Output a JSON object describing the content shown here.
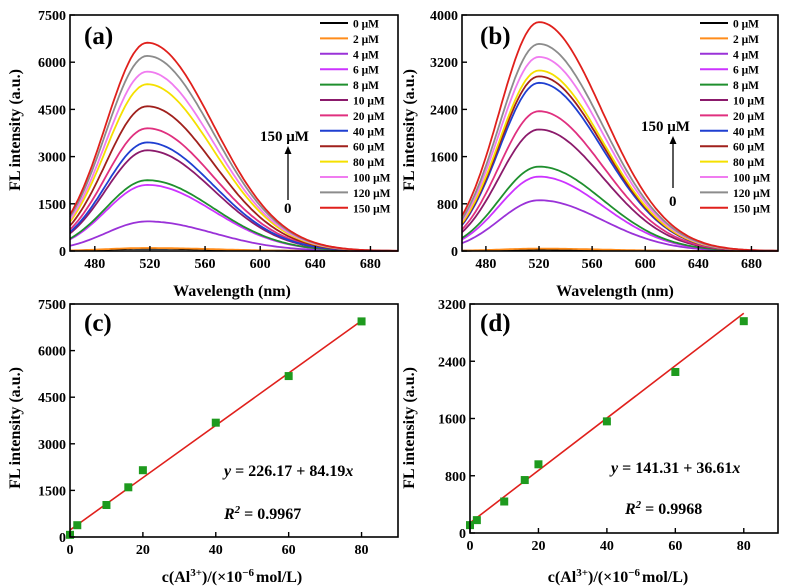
{
  "chart_data": [
    {
      "panel": "(a)",
      "type": "line",
      "xlabel": "Wavelength (nm)",
      "ylabel": "FL intensity (a.u.)",
      "xlim": [
        462,
        700
      ],
      "ylim": [
        0,
        7500
      ],
      "xticks": [
        480,
        520,
        560,
        600,
        640,
        680
      ],
      "yticks": [
        0,
        1500,
        3000,
        4500,
        6000,
        7500
      ],
      "peak_wavelength": 518,
      "arrow_top_label": "150 μM",
      "arrow_bottom_label": "0",
      "legend_position": "top-right",
      "series": [
        {
          "name": "0 μM",
          "color": "#000000",
          "peak": 70
        },
        {
          "name": "2 μM",
          "color": "#ff8c1a",
          "peak": 95
        },
        {
          "name": "4 μM",
          "color": "#9a32d8",
          "peak": 940
        },
        {
          "name": "6 μM",
          "color": "#cc33ff",
          "peak": 2100
        },
        {
          "name": "8 μM",
          "color": "#1f8f2e",
          "peak": 2250
        },
        {
          "name": "10 μM",
          "color": "#8b1a6b",
          "peak": 3200
        },
        {
          "name": "20 μM",
          "color": "#e0307f",
          "peak": 3900
        },
        {
          "name": "40 μM",
          "color": "#1f3fd1",
          "peak": 3450
        },
        {
          "name": "60 μM",
          "color": "#a0201c",
          "peak": 4600
        },
        {
          "name": "80 μM",
          "color": "#f5e000",
          "peak": 5300
        },
        {
          "name": "100 μM",
          "color": "#f07cf0",
          "peak": 5700
        },
        {
          "name": "120 μM",
          "color": "#8c8c8c",
          "peak": 6200
        },
        {
          "name": "150 μM",
          "color": "#e0201c",
          "peak": 6620
        }
      ]
    },
    {
      "panel": "(b)",
      "type": "line",
      "xlabel": "Wavelength (nm)",
      "ylabel": "FL intensity (a.u.)",
      "xlim": [
        462,
        700
      ],
      "ylim": [
        0,
        4000
      ],
      "xticks": [
        480,
        520,
        560,
        600,
        640,
        680
      ],
      "yticks": [
        0,
        800,
        1600,
        2400,
        3200,
        4000
      ],
      "peak_wavelength": 520,
      "arrow_top_label": "150 μM",
      "arrow_bottom_label": "0",
      "legend_position": "top-right",
      "series": [
        {
          "name": "0 μM",
          "color": "#000000",
          "peak": 25
        },
        {
          "name": "2 μM",
          "color": "#ff8c1a",
          "peak": 40
        },
        {
          "name": "4 μM",
          "color": "#9a32d8",
          "peak": 860
        },
        {
          "name": "6 μM",
          "color": "#cc33ff",
          "peak": 1260
        },
        {
          "name": "8 μM",
          "color": "#1f8f2e",
          "peak": 1430
        },
        {
          "name": "10 μM",
          "color": "#8b1a6b",
          "peak": 2060
        },
        {
          "name": "20 μM",
          "color": "#e0307f",
          "peak": 2370
        },
        {
          "name": "40 μM",
          "color": "#1f3fd1",
          "peak": 2850
        },
        {
          "name": "60 μM",
          "color": "#a0201c",
          "peak": 2960
        },
        {
          "name": "80 μM",
          "color": "#f5e000",
          "peak": 3060
        },
        {
          "name": "100 μM",
          "color": "#f07cf0",
          "peak": 3290
        },
        {
          "name": "120 μM",
          "color": "#8c8c8c",
          "peak": 3510
        },
        {
          "name": "150 μM",
          "color": "#e0201c",
          "peak": 3880
        }
      ]
    },
    {
      "panel": "(c)",
      "type": "scatter",
      "xlabel": "c(Al3+)/(×10−6 mol/L)",
      "ylabel": "FL intensity (a.u.)",
      "xlim": [
        0,
        90
      ],
      "ylim": [
        0,
        7500
      ],
      "xticks": [
        0,
        20,
        40,
        60,
        80
      ],
      "yticks": [
        0,
        1500,
        3000,
        4500,
        6000,
        7500
      ],
      "points_x": [
        0,
        2,
        10,
        16,
        20,
        40,
        60,
        80
      ],
      "points_y": [
        70,
        380,
        1030,
        1600,
        2150,
        3680,
        5180,
        6940
      ],
      "fit_intercept": 226.17,
      "fit_slope": 84.19,
      "fit_range": [
        0,
        80
      ],
      "marker_color": "#1e9a1e",
      "line_color": "#e0201c",
      "equation_prefix": "y",
      "equation_text": " = 226.17 + 84.19",
      "equation_suffix": "x",
      "r2_prefix": "R",
      "r2_sup": "2",
      "r2_text": " = 0.9967"
    },
    {
      "panel": "(d)",
      "type": "scatter",
      "xlabel": "c(Al3+)/(×10−6 mol/L)",
      "ylabel": "FL intensity (a.u.)",
      "xlim": [
        0,
        90
      ],
      "ylim": [
        0,
        3200
      ],
      "xticks": [
        0,
        20,
        40,
        60,
        80
      ],
      "yticks": [
        0,
        800,
        1600,
        2400,
        3200
      ],
      "points_x": [
        0,
        2,
        10,
        16,
        20,
        40,
        60,
        80
      ],
      "points_y": [
        110,
        180,
        440,
        740,
        960,
        1560,
        2250,
        2960
      ],
      "fit_intercept": 141.31,
      "fit_slope": 36.61,
      "fit_range": [
        0,
        80
      ],
      "marker_color": "#1e9a1e",
      "line_color": "#e0201c",
      "equation_prefix": "y",
      "equation_text": " = 141.31 + 36.61",
      "equation_suffix": "x",
      "r2_prefix": "R",
      "r2_sup": "2",
      "r2_text": " = 0.9968"
    }
  ],
  "conc_label": {
    "prefix": "c(Al",
    "sup_ion": "3+",
    "middle": ")/(×10",
    "sup_exp": "−6",
    "suffix": "mol/L)"
  }
}
